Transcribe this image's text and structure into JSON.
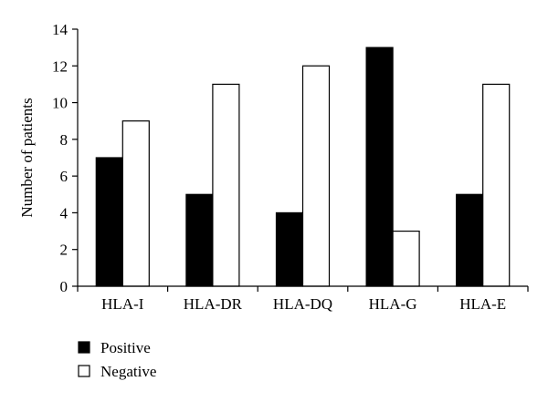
{
  "chart_data": {
    "type": "bar",
    "title": "",
    "xlabel": "",
    "ylabel": "Number of patients",
    "ylim": [
      0,
      14
    ],
    "yticks": [
      0,
      2,
      4,
      6,
      8,
      10,
      12,
      14
    ],
    "grid": false,
    "legend_position": "bottom-left",
    "categories": [
      "HLA-I",
      "HLA-DR",
      "HLA-DQ",
      "HLA-G",
      "HLA-E"
    ],
    "series": [
      {
        "name": "Positive",
        "values": [
          7,
          5,
          4,
          13,
          5
        ],
        "color": "#000000"
      },
      {
        "name": "Negative",
        "values": [
          9,
          11,
          12,
          3,
          11
        ],
        "color": "#ffffff"
      }
    ]
  }
}
